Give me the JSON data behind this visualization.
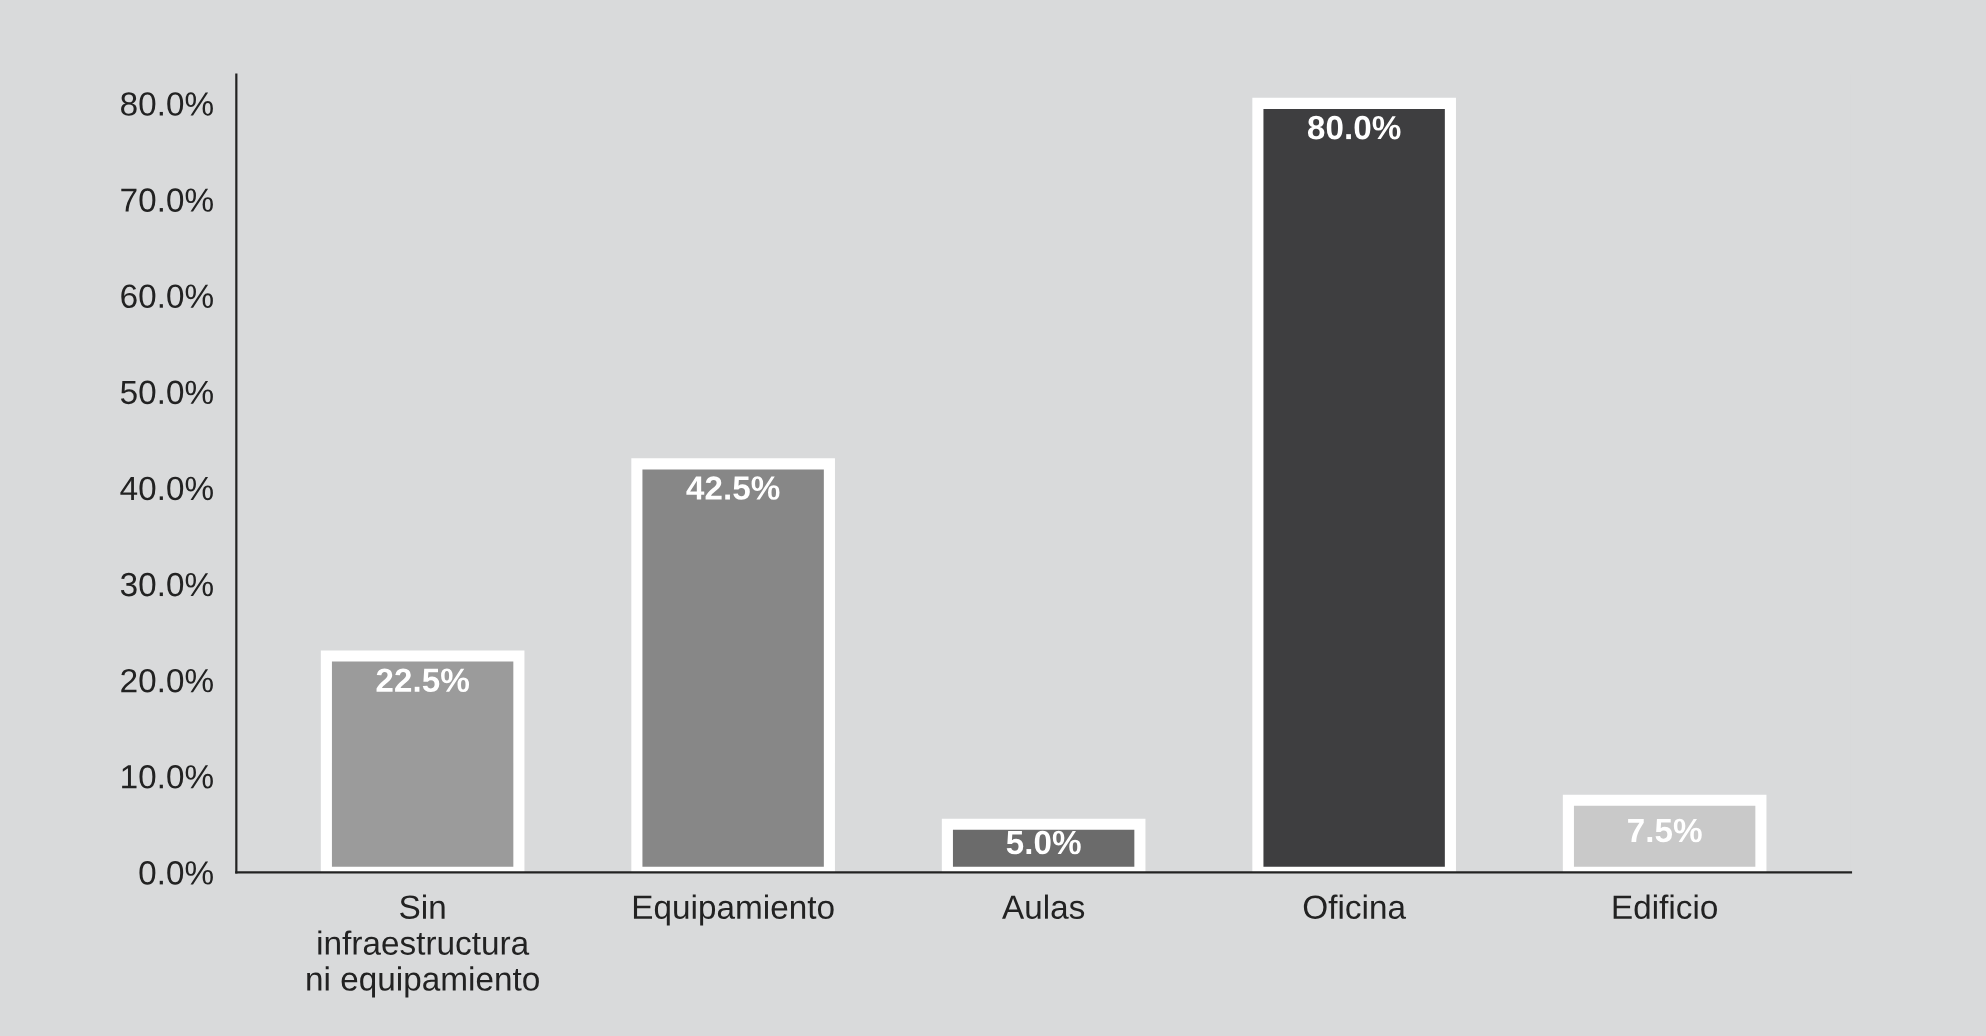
{
  "chart_data": {
    "type": "bar",
    "categories": [
      "Sin\ninfraestructura\nni equipamiento",
      "Equipamiento",
      "Aulas",
      "Oficina",
      "Edificio"
    ],
    "values": [
      22.5,
      42.5,
      5.0,
      80.0,
      7.5
    ],
    "colors": [
      "#9b9b9b",
      "#878787",
      "#6b6b6b",
      "#3e3e40",
      "#c9c9c9"
    ],
    "value_labels": [
      "22.5%",
      "42.5%",
      "5.0%",
      "80.0%",
      "7.5%"
    ],
    "ylim": [
      0,
      83
    ],
    "yticks": [
      {
        "value": 0,
        "label": "0.0%"
      },
      {
        "value": 10,
        "label": "10.0%"
      },
      {
        "value": 20,
        "label": "20.0%"
      },
      {
        "value": 30,
        "label": "30.0%"
      },
      {
        "value": 40,
        "label": "40.0%"
      },
      {
        "value": 50,
        "label": "50.0%"
      },
      {
        "value": 60,
        "label": "60.0%"
      },
      {
        "value": 70,
        "label": "70.0%"
      },
      {
        "value": 80,
        "label": "80.0%"
      }
    ],
    "grid": false,
    "legend": false
  }
}
